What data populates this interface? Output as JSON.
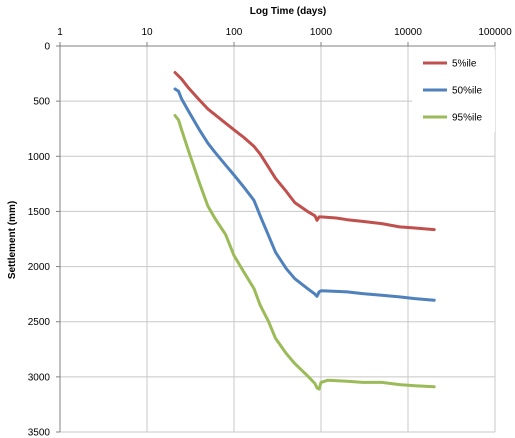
{
  "chart_data": {
    "type": "line",
    "title": "",
    "xlabel": "Log Time  (days)",
    "ylabel": "Settlement (mm)",
    "x_scale": "log",
    "xlim": [
      1,
      100000
    ],
    "ylim": [
      0,
      3500
    ],
    "y_inverted": true,
    "x_ticks": [
      "1",
      "10",
      "100",
      "1000",
      "10000",
      "100000"
    ],
    "y_ticks": [
      "0",
      "500",
      "1000",
      "1500",
      "2000",
      "2500",
      "3000",
      "3500"
    ],
    "x_tick_values": [
      1,
      10,
      100,
      1000,
      10000,
      100000
    ],
    "y_tick_values": [
      0,
      500,
      1000,
      1500,
      2000,
      2500,
      3000,
      3500
    ],
    "grid": true,
    "legend_position": "top-right",
    "series": [
      {
        "name": "5%ile",
        "color": "#c0504d",
        "points": [
          [
            21,
            240
          ],
          [
            25,
            300
          ],
          [
            30,
            380
          ],
          [
            40,
            490
          ],
          [
            50,
            570
          ],
          [
            60,
            620
          ],
          [
            80,
            700
          ],
          [
            100,
            760
          ],
          [
            130,
            830
          ],
          [
            170,
            910
          ],
          [
            200,
            980
          ],
          [
            250,
            1100
          ],
          [
            300,
            1200
          ],
          [
            400,
            1320
          ],
          [
            500,
            1420
          ],
          [
            700,
            1500
          ],
          [
            850,
            1540
          ],
          [
            900,
            1580
          ],
          [
            950,
            1550
          ],
          [
            1000,
            1550
          ],
          [
            1500,
            1560
          ],
          [
            2000,
            1575
          ],
          [
            3000,
            1590
          ],
          [
            5000,
            1610
          ],
          [
            8000,
            1640
          ],
          [
            12000,
            1650
          ],
          [
            20000,
            1665
          ]
        ]
      },
      {
        "name": "50%ile",
        "color": "#4f81bd",
        "points": [
          [
            21,
            390
          ],
          [
            23,
            410
          ],
          [
            25,
            480
          ],
          [
            30,
            590
          ],
          [
            40,
            760
          ],
          [
            50,
            880
          ],
          [
            60,
            960
          ],
          [
            80,
            1080
          ],
          [
            100,
            1170
          ],
          [
            130,
            1280
          ],
          [
            170,
            1400
          ],
          [
            200,
            1540
          ],
          [
            250,
            1720
          ],
          [
            300,
            1870
          ],
          [
            400,
            2020
          ],
          [
            500,
            2110
          ],
          [
            700,
            2200
          ],
          [
            850,
            2250
          ],
          [
            900,
            2270
          ],
          [
            950,
            2230
          ],
          [
            1000,
            2220
          ],
          [
            1500,
            2225
          ],
          [
            2000,
            2230
          ],
          [
            3000,
            2245
          ],
          [
            5000,
            2260
          ],
          [
            8000,
            2275
          ],
          [
            12000,
            2290
          ],
          [
            20000,
            2305
          ]
        ]
      },
      {
        "name": "95%ile",
        "color": "#9bbb59",
        "points": [
          [
            21,
            630
          ],
          [
            23,
            670
          ],
          [
            25,
            760
          ],
          [
            30,
            950
          ],
          [
            40,
            1240
          ],
          [
            50,
            1450
          ],
          [
            60,
            1560
          ],
          [
            80,
            1710
          ],
          [
            100,
            1900
          ],
          [
            130,
            2050
          ],
          [
            170,
            2200
          ],
          [
            200,
            2350
          ],
          [
            250,
            2500
          ],
          [
            300,
            2650
          ],
          [
            400,
            2790
          ],
          [
            500,
            2880
          ],
          [
            700,
            2990
          ],
          [
            850,
            3060
          ],
          [
            900,
            3100
          ],
          [
            950,
            3110
          ],
          [
            1000,
            3050
          ],
          [
            1200,
            3030
          ],
          [
            2000,
            3040
          ],
          [
            3000,
            3050
          ],
          [
            5000,
            3050
          ],
          [
            8000,
            3070
          ],
          [
            12000,
            3080
          ],
          [
            20000,
            3090
          ]
        ]
      }
    ]
  }
}
